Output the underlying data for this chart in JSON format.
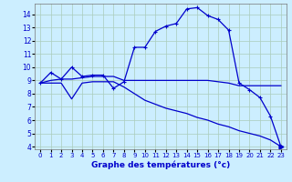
{
  "title": "Graphe des températures (°c)",
  "bg_color": "#cceeff",
  "line_color": "#0000cc",
  "xlim": [
    -0.5,
    23.5
  ],
  "ylim": [
    3.8,
    14.8
  ],
  "xticks": [
    0,
    1,
    2,
    3,
    4,
    5,
    6,
    7,
    8,
    9,
    10,
    11,
    12,
    13,
    14,
    15,
    16,
    17,
    18,
    19,
    20,
    21,
    22,
    23
  ],
  "yticks": [
    4,
    5,
    6,
    7,
    8,
    9,
    10,
    11,
    12,
    13,
    14
  ],
  "curve1_x": [
    0,
    1,
    2,
    3,
    4,
    5,
    6,
    7,
    8,
    9,
    10,
    11,
    12,
    13,
    14,
    15,
    16,
    17,
    18,
    19,
    20,
    21,
    22,
    23
  ],
  "curve1_y": [
    8.8,
    9.6,
    9.1,
    10.0,
    9.3,
    9.4,
    9.4,
    8.4,
    8.9,
    11.5,
    11.5,
    12.7,
    13.1,
    13.3,
    14.4,
    14.5,
    13.9,
    13.6,
    12.8,
    8.8,
    8.3,
    7.7,
    6.3,
    4.0
  ],
  "curve2_x": [
    0,
    1,
    2,
    3,
    4,
    5,
    6,
    7,
    8,
    9,
    10,
    11,
    12,
    13,
    14,
    15,
    16,
    17,
    18,
    19,
    20,
    21,
    22,
    23
  ],
  "curve2_y": [
    8.8,
    9.0,
    9.1,
    9.1,
    9.2,
    9.3,
    9.3,
    9.3,
    9.0,
    9.0,
    9.0,
    9.0,
    9.0,
    9.0,
    9.0,
    9.0,
    9.0,
    8.9,
    8.8,
    8.6,
    8.6,
    8.6,
    8.6,
    8.6
  ],
  "curve3_x": [
    0,
    1,
    2,
    3,
    4,
    5,
    6,
    7,
    8,
    9,
    10,
    11,
    12,
    13,
    14,
    15,
    16,
    17,
    18,
    19,
    20,
    21,
    22,
    23
  ],
  "curve3_y": [
    8.8,
    8.8,
    8.8,
    7.6,
    8.8,
    8.9,
    8.9,
    8.9,
    8.5,
    8.0,
    7.5,
    7.2,
    6.9,
    6.7,
    6.5,
    6.2,
    6.0,
    5.7,
    5.5,
    5.2,
    5.0,
    4.8,
    4.5,
    4.0
  ]
}
